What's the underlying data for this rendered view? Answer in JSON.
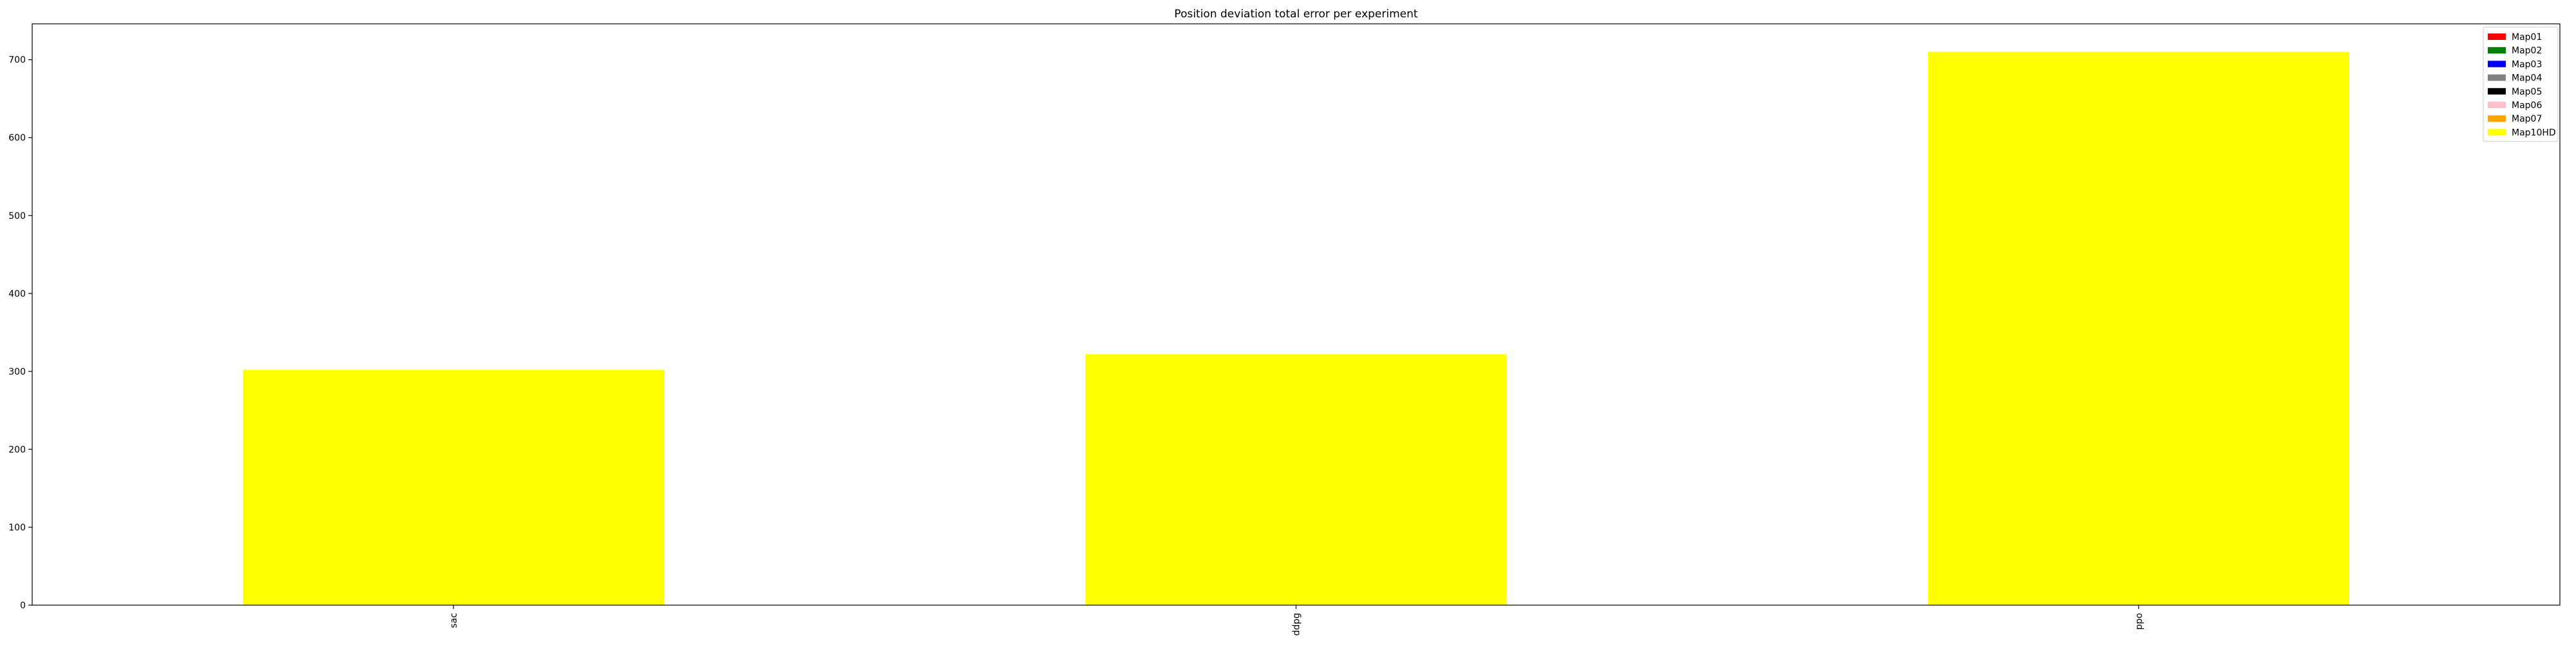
{
  "chart_data": {
    "type": "bar",
    "stacked": true,
    "title": "Position deviation total error per experiment",
    "xlabel": "",
    "ylabel": "",
    "categories": [
      "sac",
      "ddpg",
      "ppo"
    ],
    "ylim": [
      0,
      746
    ],
    "yticks": [
      0,
      100,
      200,
      300,
      400,
      500,
      600,
      700
    ],
    "grid": false,
    "legend_position": "top-right",
    "series": [
      {
        "name": "Map01",
        "color": "#ff0000",
        "values": [
          0,
          0,
          0
        ]
      },
      {
        "name": "Map02",
        "color": "#008000",
        "values": [
          0,
          0,
          0
        ]
      },
      {
        "name": "Map03",
        "color": "#0000ff",
        "values": [
          0,
          0,
          0
        ]
      },
      {
        "name": "Map04",
        "color": "#808080",
        "values": [
          0,
          0,
          0
        ]
      },
      {
        "name": "Map05",
        "color": "#000000",
        "values": [
          0,
          0,
          0
        ]
      },
      {
        "name": "Map06",
        "color": "#ffc0cb",
        "values": [
          0,
          0,
          0
        ]
      },
      {
        "name": "Map07",
        "color": "#ffa500",
        "values": [
          0,
          0,
          0
        ]
      },
      {
        "name": "Map10HD",
        "color": "#ffff00",
        "values": [
          302,
          322,
          710
        ]
      }
    ]
  }
}
